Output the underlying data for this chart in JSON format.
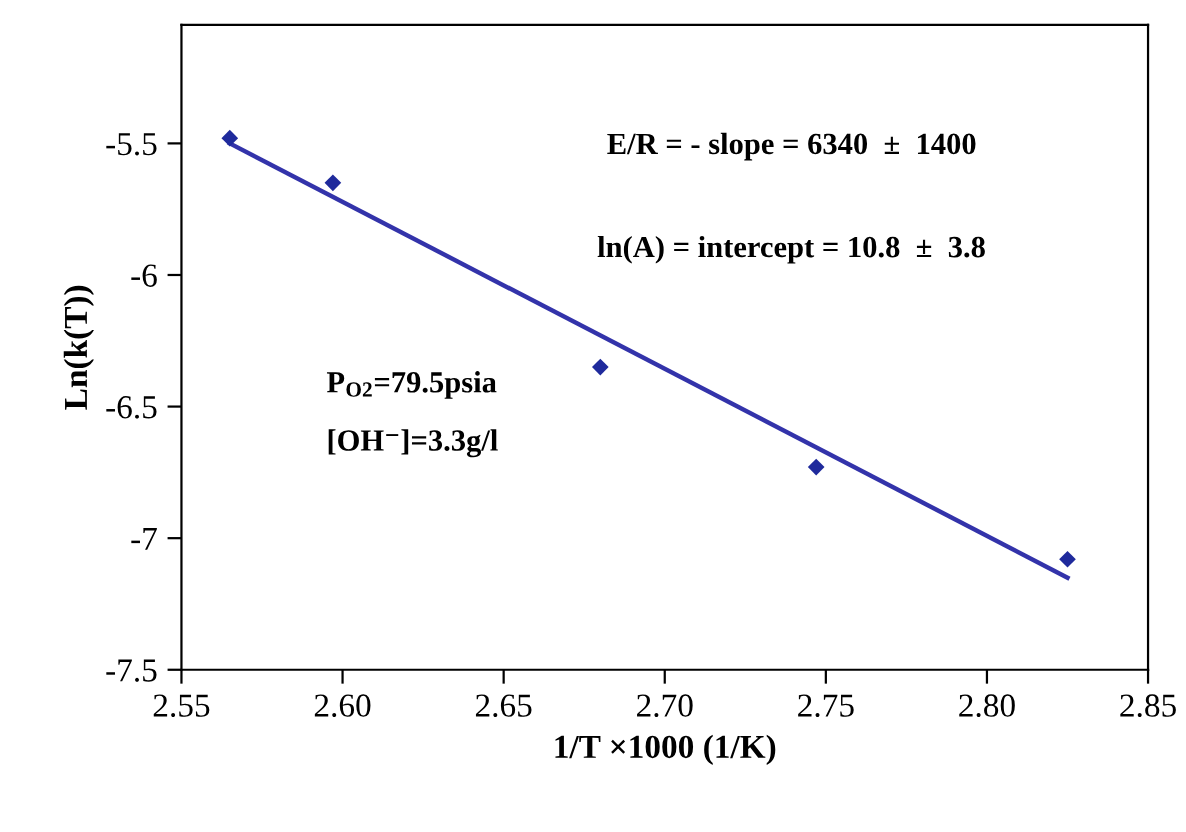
{
  "chart_data": {
    "type": "scatter",
    "xlabel": "1/T ×1000 (1/K)",
    "ylabel": "Ln(k(T))",
    "xlim": [
      2.55,
      2.85
    ],
    "xticks": [
      {
        "value": 2.55,
        "label": "2.55"
      },
      {
        "value": 2.6,
        "label": "2.60"
      },
      {
        "value": 2.65,
        "label": "2.65"
      },
      {
        "value": 2.7,
        "label": "2.70"
      },
      {
        "value": 2.75,
        "label": "2.75"
      },
      {
        "value": 2.8,
        "label": "2.80"
      },
      {
        "value": 2.85,
        "label": "2.85"
      }
    ],
    "ylim": [
      -7.5,
      -5.05
    ],
    "yticks": [
      -7.5,
      -7,
      -6.5,
      -6,
      -5.5
    ],
    "grid": false,
    "legend": false,
    "series": [
      {
        "color": "#1f2a9c",
        "marker": "diamond",
        "x": [
          2.565,
          2.597,
          2.68,
          2.747,
          2.825
        ],
        "values": [
          -5.48,
          -5.65,
          -6.35,
          -6.73,
          -7.08
        ]
      },
      {
        "type": "line",
        "color": "#3333aa",
        "marker": "none",
        "line_style": "solid",
        "x": [
          2.565,
          2.825
        ],
        "values": [
          -5.5,
          -7.15
        ]
      }
    ],
    "annotations": [
      "E/R = - slope = 6340  ±  1400",
      "ln(A) = intercept = 10.8  ±  3.8",
      "P$_{O2}$=79.5psia",
      "[OH⁻]=3.3g/l"
    ]
  }
}
